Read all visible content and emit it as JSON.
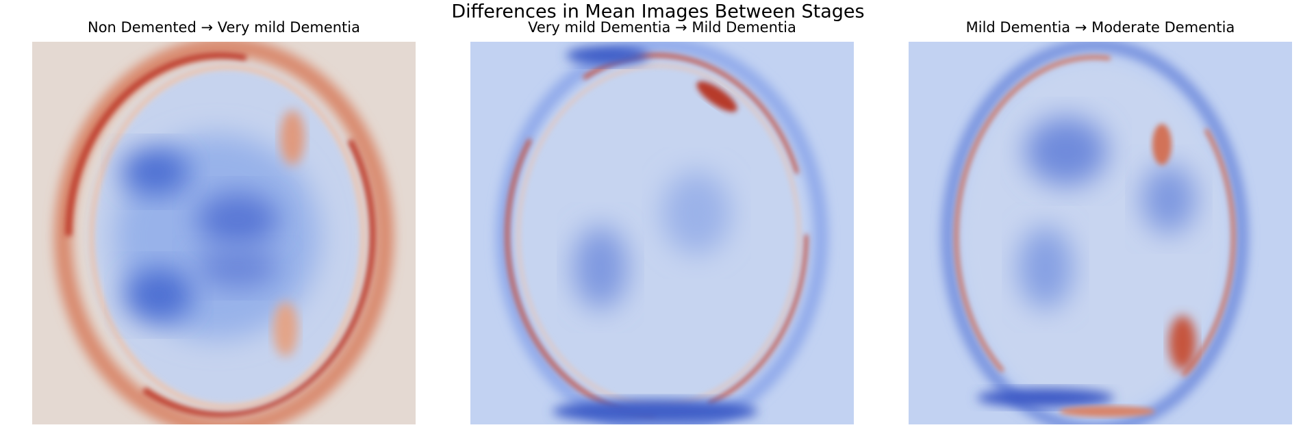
{
  "title": "Differences in Mean Images Between Stages",
  "panels": [
    {
      "title": "Non Demented → Very mild Dementia"
    },
    {
      "title": "Very mild Dementia → Mild Dementia"
    },
    {
      "title": "Mild Dementia → Moderate Dementia"
    }
  ]
}
